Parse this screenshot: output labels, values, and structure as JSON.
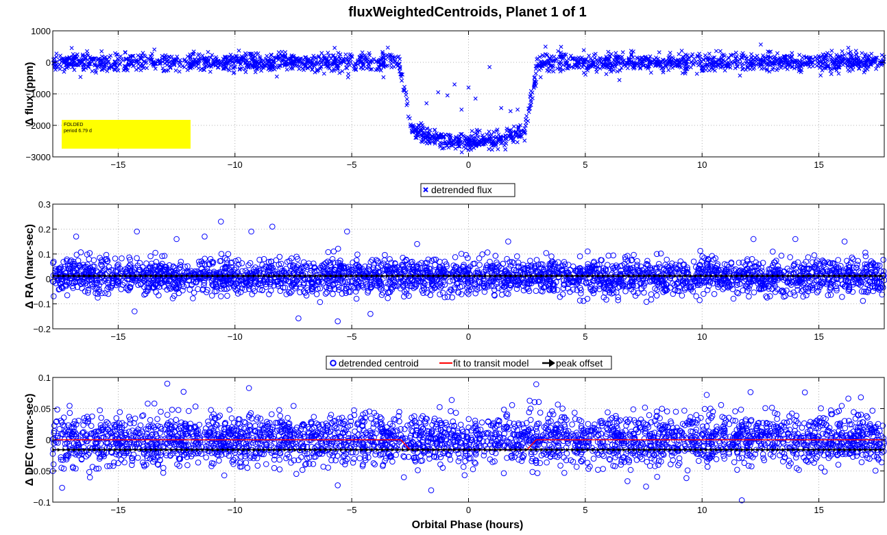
{
  "figure": {
    "title": "fluxWeightedCentroids, Planet 1 of 1",
    "xlabel": "Orbital Phase (hours)"
  },
  "colors": {
    "data": "#0000ff",
    "fit": "#ff0000",
    "peak": "#000000",
    "annotation_box": "#ffff00",
    "grid": "#9a9a9a"
  },
  "chart_data": [
    {
      "type": "scatter",
      "ylabel": "Δ flux (ppm)",
      "xlim": [
        -17.8,
        17.8
      ],
      "ylim": [
        -3000,
        1000
      ],
      "x_ticks": [
        -15,
        -10,
        -5,
        0,
        5,
        10,
        15
      ],
      "x_tick_labels": [
        "−15",
        "−10",
        "−5",
        "0",
        "5",
        "10",
        "15"
      ],
      "y_ticks": [
        -3000,
        -2000,
        -1000,
        0,
        1000
      ],
      "y_tick_labels": [
        "−3000",
        "−2000",
        "−1000",
        "0",
        "1000"
      ],
      "grid": true,
      "annotation": {
        "lines": [
          "FOLDED",
          "period 6.79 d"
        ],
        "position": "bottom-left"
      },
      "legend": {
        "placement": "below",
        "entries": [
          "detrended flux"
        ]
      },
      "series": [
        {
          "name": "detrended flux",
          "marker": "x",
          "color": "#0000ff",
          "model": {
            "baseline": 0,
            "depth": -2200,
            "transit_curvature": -300,
            "ingress_start": -3.0,
            "ingress_end": -2.4,
            "egress_start": 2.4,
            "egress_end": 3.0,
            "scatter_sd": 140,
            "n_points": 2400
          },
          "outliers": [
            {
              "x": -1.3,
              "y": -950
            },
            {
              "x": -0.9,
              "y": -1050
            },
            {
              "x": -0.6,
              "y": -700
            },
            {
              "x": -0.3,
              "y": -1500
            },
            {
              "x": 0.0,
              "y": -800
            },
            {
              "x": 0.3,
              "y": -1150
            },
            {
              "x": 0.9,
              "y": -150
            },
            {
              "x": 1.4,
              "y": -1450
            },
            {
              "x": 1.8,
              "y": -1550
            },
            {
              "x": -1.8,
              "y": -1300
            },
            {
              "x": 2.1,
              "y": -1500
            }
          ]
        }
      ]
    },
    {
      "type": "scatter",
      "ylabel": "Δ RA (marc-sec)",
      "xlim": [
        -17.8,
        17.8
      ],
      "ylim": [
        -0.2,
        0.3
      ],
      "x_ticks": [
        -15,
        -10,
        -5,
        0,
        5,
        10,
        15
      ],
      "x_tick_labels": [
        "−15",
        "−10",
        "−5",
        "0",
        "5",
        "10",
        "15"
      ],
      "y_ticks": [
        -0.2,
        -0.1,
        0,
        0.1,
        0.2,
        0.3
      ],
      "y_tick_labels": [
        "−0.2",
        "−0.1",
        "0",
        "0.1",
        "0.2",
        "0.3"
      ],
      "grid": true,
      "legend": {
        "placement": "below",
        "entries": [
          "detrended centroid",
          "fit to transit model",
          "peak offset"
        ]
      },
      "series": [
        {
          "name": "detrended centroid",
          "marker": "o",
          "color": "#0000ff",
          "model": {
            "center": 0.01,
            "scatter_sd": 0.035,
            "n_points": 3000
          },
          "outliers": [
            {
              "x": -10.6,
              "y": 0.23
            },
            {
              "x": -8.4,
              "y": 0.21
            },
            {
              "x": -9.3,
              "y": 0.19
            },
            {
              "x": -14.2,
              "y": 0.19
            },
            {
              "x": -5.2,
              "y": 0.19
            },
            {
              "x": -5.6,
              "y": -0.17
            },
            {
              "x": -14.3,
              "y": -0.13
            },
            {
              "x": -4.2,
              "y": -0.14
            },
            {
              "x": -11.3,
              "y": 0.17
            },
            {
              "x": -12.5,
              "y": 0.16
            },
            {
              "x": 1.7,
              "y": 0.15
            },
            {
              "x": 12.2,
              "y": 0.16
            },
            {
              "x": -16.8,
              "y": 0.17
            },
            {
              "x": 16.1,
              "y": 0.15
            },
            {
              "x": -2.2,
              "y": 0.14
            }
          ]
        },
        {
          "name": "fit to transit model",
          "type": "line",
          "color": "#ff0000",
          "x": [
            -17.8,
            17.8
          ],
          "y": [
            0.012,
            0.012
          ]
        },
        {
          "name": "peak offset",
          "type": "marker_row",
          "color": "#000000",
          "y": 0.012,
          "spacing": 0.22
        }
      ]
    },
    {
      "type": "scatter",
      "ylabel": "Δ DEC (marc-sec)",
      "xlim": [
        -17.8,
        17.8
      ],
      "ylim": [
        -0.1,
        0.1
      ],
      "x_ticks": [
        -15,
        -10,
        -5,
        0,
        5,
        10,
        15
      ],
      "x_tick_labels": [
        "−15",
        "−10",
        "−5",
        "0",
        "5",
        "10",
        "15"
      ],
      "y_ticks": [
        -0.1,
        -0.05,
        0,
        0.05,
        0.1
      ],
      "y_tick_labels": [
        "−0.1",
        "−0.05",
        "0",
        "0.05",
        "0.1"
      ],
      "grid": true,
      "series": [
        {
          "name": "detrended centroid",
          "marker": "o",
          "color": "#0000ff",
          "model": {
            "center": 0.0,
            "scatter_sd": 0.02,
            "n_points": 3000
          },
          "outliers": [
            {
              "x": -12.9,
              "y": 0.09
            },
            {
              "x": 2.9,
              "y": 0.089
            },
            {
              "x": -12.2,
              "y": 0.077
            },
            {
              "x": -9.4,
              "y": 0.083
            },
            {
              "x": 14.4,
              "y": 0.076
            },
            {
              "x": 11.7,
              "y": -0.097
            },
            {
              "x": -17.4,
              "y": -0.077
            },
            {
              "x": -1.6,
              "y": -0.081
            },
            {
              "x": 7.6,
              "y": -0.075
            },
            {
              "x": -5.6,
              "y": -0.073
            },
            {
              "x": 16.8,
              "y": 0.068
            },
            {
              "x": 10.2,
              "y": 0.072
            }
          ]
        },
        {
          "name": "fit to transit model",
          "type": "line",
          "color": "#ff0000",
          "x": [
            -17.8,
            -2.9,
            -2.5,
            2.5,
            2.9,
            17.8
          ],
          "y": [
            0.0,
            0.0,
            -0.016,
            -0.016,
            0.0,
            0.0
          ]
        },
        {
          "name": "peak offset",
          "type": "marker_row",
          "color": "#000000",
          "y": -0.016,
          "spacing": 0.22
        }
      ]
    }
  ]
}
